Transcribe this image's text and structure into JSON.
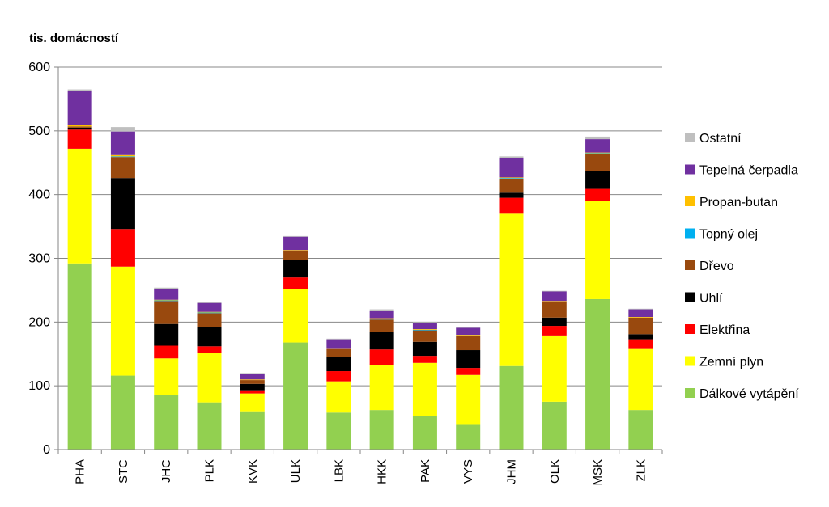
{
  "chart_data": {
    "type": "bar",
    "stacked": true,
    "ylabel": "tis. domácností",
    "ylim": [
      0,
      600
    ],
    "yticks": [
      0,
      100,
      200,
      300,
      400,
      500,
      600
    ],
    "grid": true,
    "legend_position": "right",
    "categories": [
      "PHA",
      "STC",
      "JHC",
      "PLK",
      "KVK",
      "ULK",
      "LBK",
      "HKK",
      "PAK",
      "VYS",
      "JHM",
      "OLK",
      "MSK",
      "ZLK"
    ],
    "series": [
      {
        "name": "Dálkové vytápění",
        "color": "#92d050",
        "values": [
          292,
          116,
          85,
          74,
          60,
          168,
          58,
          62,
          52,
          40,
          131,
          75,
          236,
          62
        ]
      },
      {
        "name": "Zemní plyn",
        "color": "#ffff00",
        "values": [
          180,
          171,
          58,
          77,
          28,
          84,
          49,
          70,
          84,
          77,
          239,
          104,
          154,
          97
        ]
      },
      {
        "name": "Elektřina",
        "color": "#ff0000",
        "values": [
          30,
          59,
          20,
          11,
          5,
          18,
          16,
          25,
          11,
          11,
          25,
          15,
          19,
          14
        ]
      },
      {
        "name": "Uhlí",
        "color": "#000000",
        "values": [
          3,
          80,
          34,
          30,
          10,
          28,
          22,
          28,
          22,
          28,
          8,
          13,
          28,
          8
        ]
      },
      {
        "name": "Dřevo",
        "color": "#99490e",
        "values": [
          2,
          33,
          36,
          22,
          6,
          14,
          13,
          19,
          18,
          22,
          22,
          24,
          27,
          26
        ]
      },
      {
        "name": "Topný olej",
        "color": "#00b0f0",
        "values": [
          0,
          1,
          1,
          1,
          0,
          0,
          0,
          1,
          1,
          1,
          1,
          1,
          1,
          0
        ]
      },
      {
        "name": "Propan-butan",
        "color": "#ffc000",
        "values": [
          2,
          2,
          1,
          1,
          1,
          1,
          1,
          1,
          1,
          1,
          1,
          1,
          1,
          1
        ]
      },
      {
        "name": "Tepelná čerpadla",
        "color": "#7030a0",
        "values": [
          54,
          37,
          17,
          14,
          9,
          21,
          14,
          12,
          10,
          11,
          30,
          15,
          21,
          12
        ]
      },
      {
        "name": "Ostatní",
        "color": "#bfbfbf",
        "values": [
          2,
          7,
          2,
          1,
          1,
          1,
          1,
          2,
          1,
          1,
          3,
          1,
          4,
          1
        ]
      }
    ]
  }
}
